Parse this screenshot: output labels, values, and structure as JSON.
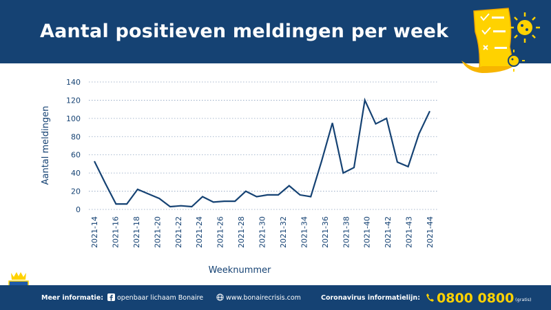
{
  "header": {
    "title": "Aantal positieven meldingen per week"
  },
  "colors": {
    "brand_blue": "#154273",
    "line": "#154273",
    "accent_yellow": "#FFD200",
    "grid": "#8aa0bd"
  },
  "chart_data": {
    "type": "line",
    "ylabel": "Aantal meldingen",
    "xlabel": "Weeknummer",
    "ylim": [
      0,
      140
    ],
    "yticks": [
      0,
      20,
      40,
      60,
      80,
      100,
      120,
      140
    ],
    "grid": "horizontal dotted",
    "xtick_labels": [
      "2021-14",
      "2021-16",
      "2021-18",
      "2021-20",
      "2021-22",
      "2021-24",
      "2021-26",
      "2021-28",
      "2021-30",
      "2021-32",
      "2021-34",
      "2021-36",
      "2021-38",
      "2021-40",
      "2021-42",
      "2021-43",
      "2021-44"
    ],
    "series": [
      {
        "x": [
          14,
          15,
          16,
          17,
          18,
          19,
          20,
          21,
          22,
          23,
          24,
          25,
          26,
          27,
          28,
          29,
          30,
          31,
          32,
          33,
          34,
          35,
          36,
          37,
          38,
          39,
          40,
          41,
          42,
          43,
          44,
          45
        ],
        "values": [
          53,
          29,
          6,
          6,
          22,
          17,
          12,
          3,
          4,
          3,
          14,
          8,
          9,
          9,
          20,
          14,
          16,
          16,
          26,
          16,
          14,
          53,
          95,
          40,
          46,
          120,
          94,
          100,
          52,
          47,
          83,
          108
        ]
      }
    ]
  },
  "footer": {
    "more_info_label": "Meer informatie:",
    "facebook": "openbaar lichaam Bonaire",
    "website": "www.bonairecrisis.com",
    "hotline_label": "Coronavirus informatielijn:",
    "phone": "0800 0800",
    "phone_note": "(gratis)"
  }
}
